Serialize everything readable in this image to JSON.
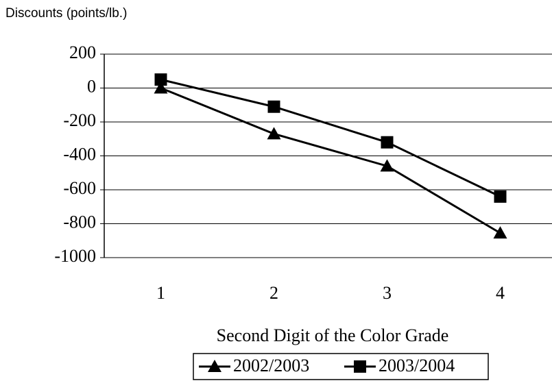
{
  "chart_data": {
    "type": "line",
    "y_label": "Discounts (points/lb.)",
    "x_label": "Second Digit of the Color Grade",
    "categories": [
      "1",
      "2",
      "3",
      "4"
    ],
    "series": [
      {
        "name": "2002/2003",
        "color": "#000000",
        "marker": "triangle",
        "values": [
          0,
          -270,
          -460,
          -855
        ]
      },
      {
        "name": "2003/2004",
        "color": "#000000",
        "marker": "square",
        "values": [
          50,
          -110,
          -320,
          -640
        ]
      }
    ],
    "ylim": [
      -1000,
      200
    ],
    "yticks": [
      -1000,
      -800,
      -600,
      -400,
      -200,
      0,
      200
    ],
    "grid": true
  }
}
